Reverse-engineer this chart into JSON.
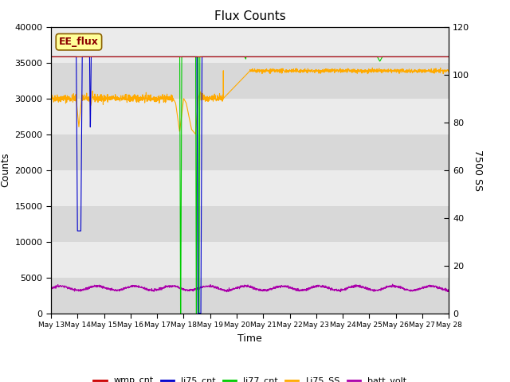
{
  "title": "Flux Counts",
  "ylabel_left": "Counts",
  "ylabel_right": "7500 SS",
  "xlabel": "Time",
  "annotation": "EE_flux",
  "ylim_left": [
    0,
    40000
  ],
  "ylim_right": [
    0,
    120
  ],
  "yticks_left": [
    0,
    5000,
    10000,
    15000,
    20000,
    25000,
    30000,
    35000,
    40000
  ],
  "yticks_right": [
    0,
    20,
    40,
    60,
    80,
    100,
    120
  ],
  "bg_color_light": "#ebebeb",
  "bg_color_dark": "#d8d8d8",
  "fig_bg": "#ffffff",
  "legend_entries": [
    {
      "label": "wmp_cnt",
      "color": "#cc0000"
    },
    {
      "label": "li75_cnt",
      "color": "#0000cc"
    },
    {
      "label": "li77_cnt",
      "color": "#00cc00"
    },
    {
      "label": "Li75_SS",
      "color": "#ffaa00"
    },
    {
      "label": "batt_volt",
      "color": "#aa00aa"
    }
  ],
  "x_tick_labels": [
    "May 13",
    "May 14",
    "May 15",
    "May 16",
    "May 17",
    "May 18",
    "May 19",
    "May 20",
    "May 21",
    "May 22",
    "May 23",
    "May 24",
    "May 25",
    "May 26",
    "May 27",
    "May 28"
  ],
  "n_days": 15
}
